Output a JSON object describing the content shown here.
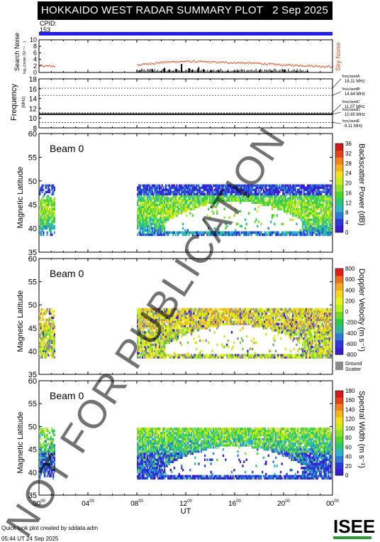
{
  "header": {
    "title": "HOKKAIDO WEST RADAR SUMMARY PLOT",
    "date": "2 Sep 2025",
    "cpid_label": "CPID:",
    "cpid_value": "153"
  },
  "watermark": "NOT FOR PUBLICATION",
  "footer": {
    "created_by": "Quick look plot created by sddata.adm",
    "created_at": "05:44 UT 24 Sep 2025",
    "logo": "ISEE"
  },
  "colors": {
    "cpid_bar": "#1f1ff0",
    "noise": "#e0491b",
    "velocity_scale": [
      "#e0201b",
      "#f26b1b",
      "#f5a623",
      "#f2d61b",
      "#e8f21b",
      "#b5f21b",
      "#6edc2a",
      "#2ac84a",
      "#2ab5a0",
      "#2a7ad8",
      "#2a3ad8",
      "#3a1bd0"
    ],
    "power_scale": [
      "#3a1bd0",
      "#2a3ad8",
      "#2a7ad8",
      "#2ab5c8",
      "#2ac870",
      "#4ad82a",
      "#8ee02a",
      "#c8ec1b",
      "#f2e01b",
      "#f5b21b",
      "#f2801b",
      "#e8401b",
      "#d01b1b"
    ]
  },
  "chart_data": [
    {
      "type": "line",
      "panel": "noise",
      "ylabel": "Search Noise",
      "ylabel_sub": "log₁₀(noise /10⁻¹⁶ ...)",
      "right_label": "Sky Noise",
      "ylim": [
        0,
        10
      ],
      "yticks": [
        "0",
        "2",
        "4",
        "6",
        "8",
        "10"
      ],
      "x_unit": "hours UT",
      "sky_noise": [
        [
          0,
          2.2
        ],
        [
          1.3,
          2.0
        ],
        [
          8.0,
          2.4
        ],
        [
          9,
          2.8
        ],
        [
          10,
          3.2
        ],
        [
          11,
          3.4
        ],
        [
          12,
          3.5
        ],
        [
          13,
          3.4
        ],
        [
          14,
          3.3
        ],
        [
          15,
          3.2
        ],
        [
          16,
          3.1
        ],
        [
          17,
          3.0
        ],
        [
          18,
          2.9
        ],
        [
          19,
          2.6
        ],
        [
          20,
          2.4
        ],
        [
          21,
          2.3
        ],
        [
          22,
          2.2
        ],
        [
          23,
          2.0
        ],
        [
          24,
          1.9
        ]
      ],
      "search_noise_bars": [
        [
          8.2,
          0.6
        ],
        [
          9.2,
          1.1
        ],
        [
          10.2,
          1.4
        ],
        [
          10.6,
          0.9
        ],
        [
          11.2,
          1.0
        ],
        [
          11.6,
          2.6
        ],
        [
          12.2,
          1.3
        ],
        [
          12.5,
          0.8
        ],
        [
          13.0,
          1.6
        ],
        [
          13.4,
          0.9
        ],
        [
          14.0,
          0.7
        ],
        [
          14.6,
          0.8
        ],
        [
          15.4,
          0.6
        ],
        [
          16.2,
          0.5
        ],
        [
          18.0,
          0.7
        ],
        [
          19.0,
          0.5
        ],
        [
          20.0,
          0.9
        ],
        [
          21.0,
          0.4
        ]
      ]
    },
    {
      "type": "line",
      "panel": "frequency",
      "ylabel": "Frequency",
      "ylabel_unit": "(MHz)",
      "ylim": [
        8,
        18
      ],
      "yticks": [
        "8",
        "10",
        "12",
        "14",
        "16",
        "18"
      ],
      "band_lines": [
        16.11,
        14.64,
        11.07,
        10.8,
        9.11
      ],
      "series": [
        {
          "values": [
            [
              0,
              10.8
            ],
            [
              24,
              10.8
            ]
          ]
        }
      ],
      "band_labels": [
        {
          "name": "freq bandA",
          "value": "16.11 MHz"
        },
        {
          "name": "freq bandB",
          "value": "14.64 MHz"
        },
        {
          "name": "freq bandC",
          "value": "11.07 MHz"
        },
        {
          "name": "freq bandD",
          "value": "10.80 MHz"
        },
        {
          "name": "freq bandE",
          "value": "9.11 MHz"
        }
      ]
    },
    {
      "type": "heatmap",
      "panel": "power",
      "beam_label": "Beam",
      "beam": "0",
      "ylabel": "Magnetic Latitude",
      "ylim": [
        35,
        60
      ],
      "yticks": [
        "35",
        "40",
        "45",
        "50",
        "55",
        "60"
      ],
      "colorbar_label": "Backscatter Power (dB)",
      "colorbar_ticks": [
        "0",
        "4",
        "8",
        "12",
        "16",
        "20",
        "24",
        "28",
        "32",
        "36"
      ],
      "coverage": [
        [
          0,
          1.3
        ],
        [
          8.0,
          23.9
        ]
      ],
      "latitude_range": [
        38.5,
        49.0
      ]
    },
    {
      "type": "heatmap",
      "panel": "velocity",
      "beam_label": "Beam",
      "beam": "0",
      "ylabel": "Magnetic Latitude",
      "ylim": [
        35,
        60
      ],
      "yticks": [
        "35",
        "40",
        "45",
        "50",
        "55",
        "60"
      ],
      "colorbar_label": "Doppler Velocity (m s⁻¹)",
      "colorbar_ticks": [
        "800",
        "600",
        "400",
        "200",
        "0",
        "-200",
        "-400",
        "-600",
        "-800"
      ],
      "ground_scatter_label": "Ground Scatter",
      "coverage": [
        [
          0,
          1.3
        ],
        [
          8.0,
          23.9
        ]
      ],
      "latitude_range": [
        38.5,
        49.0
      ]
    },
    {
      "type": "heatmap",
      "panel": "width",
      "beam_label": "Beam",
      "beam": "0",
      "ylabel": "Magnetic Latitude",
      "ylim": [
        35,
        60
      ],
      "yticks": [
        "35",
        "40",
        "45",
        "50",
        "55",
        "60"
      ],
      "colorbar_label": "Spectral Width (m s⁻¹)",
      "colorbar_ticks": [
        "0",
        "20",
        "40",
        "60",
        "80",
        "100",
        "120",
        "140",
        "160",
        "180"
      ],
      "coverage": [
        [
          0,
          1.3
        ],
        [
          8.0,
          23.9
        ]
      ],
      "latitude_range": [
        38.5,
        49.5
      ]
    }
  ],
  "x_axis": {
    "label": "UT",
    "xlim": [
      0,
      24
    ],
    "ticks": [
      "00",
      "04",
      "08",
      "12",
      "16",
      "20",
      "00"
    ],
    "tick_sup": "00"
  }
}
